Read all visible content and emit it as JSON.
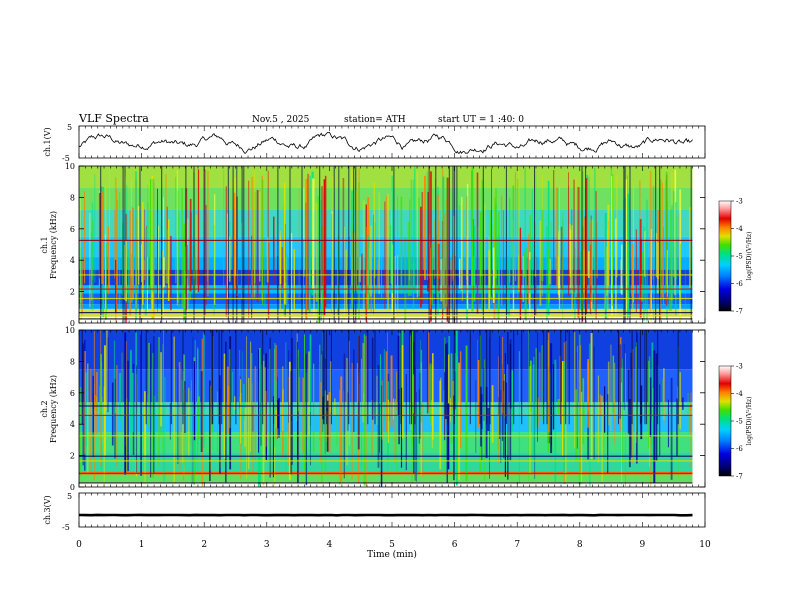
{
  "chart_data": {
    "type": "spectrogram",
    "header": {
      "title": "VLF  Spectra",
      "date": "Nov.5  , 2025",
      "station": "station= ATH",
      "start_ut": "start  UT  =    1 :40: 0"
    },
    "x_axis": {
      "label": "Time  (min)",
      "range": [
        0,
        10
      ],
      "ticks": [
        "0",
        "1",
        "2",
        "3",
        "4",
        "5",
        "6",
        "7",
        "8",
        "9",
        "10"
      ]
    },
    "panels": [
      {
        "id": "ch1_waveform",
        "ylabel": "ch.1(V)",
        "ylim": [
          -5,
          5
        ],
        "yticks": [
          "5",
          "-5"
        ],
        "series_description": "voltage trace fluctuating roughly between -3 V and +2 V"
      },
      {
        "id": "ch1_spectrogram",
        "ylabel": "ch.1\nFrequency  (kHz)",
        "ylabel_line1": "ch.1",
        "ylabel_line2": "Frequency  (kHz)",
        "ylim": [
          0,
          10
        ],
        "yticks": [
          "0",
          "2",
          "4",
          "6",
          "8",
          "10"
        ],
        "colorbar": {
          "label": "log(PSD)(V²/Hz)",
          "range": [
            -7,
            -3
          ],
          "ticks": [
            "-3",
            "-4",
            "-5",
            "-6",
            "-7"
          ]
        }
      },
      {
        "id": "ch2_spectrogram",
        "ylabel": "ch.2\nFrequency  (kHz)",
        "ylabel_line1": "ch.2",
        "ylabel_line2": "Frequency  (kHz)",
        "ylim": [
          0,
          10
        ],
        "yticks": [
          "0",
          "2",
          "4",
          "6",
          "8",
          "10"
        ],
        "colorbar": {
          "label": "log(PSD)(V²/Hz)",
          "range": [
            -7,
            -3
          ],
          "ticks": [
            "-3",
            "-4",
            "-5",
            "-6",
            "-7"
          ]
        }
      },
      {
        "id": "ch3_waveform",
        "ylabel": "ch.3(V)",
        "ylim": [
          -5,
          5
        ],
        "yticks": [
          "5",
          "-5"
        ],
        "level": -1.5,
        "series_description": "nearly flat trace around -1.5 V"
      }
    ],
    "colors": {
      "colormap": [
        "#000050",
        "#0000d0",
        "#0060ff",
        "#00b0ff",
        "#00e0c0",
        "#00e060",
        "#60e000",
        "#e0e000",
        "#ff8000",
        "#e00000",
        "#ff9090",
        "#ffffff"
      ]
    }
  }
}
